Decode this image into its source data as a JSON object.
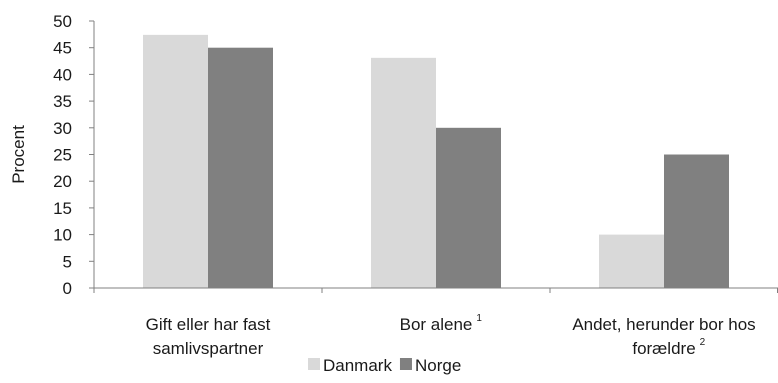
{
  "chart_data": {
    "type": "bar",
    "title": "",
    "xlabel": "",
    "ylabel": "Procent",
    "ylim": [
      0,
      50
    ],
    "yticks": [
      0,
      5,
      10,
      15,
      20,
      25,
      30,
      35,
      40,
      45,
      50
    ],
    "grid": false,
    "legend_position": "bottom",
    "categories": [
      {
        "lines": [
          "Gift eller har fast",
          "samlivspartner"
        ],
        "sup": ""
      },
      {
        "lines": [
          "Bor alene"
        ],
        "sup": "1"
      },
      {
        "lines": [
          "Andet, herunder bor hos",
          "forældre"
        ],
        "sup": "2"
      }
    ],
    "series": [
      {
        "name": "Danmark",
        "color": "#d9d9d9",
        "values": [
          47.4,
          43.1,
          10.0
        ]
      },
      {
        "name": "Norge",
        "color": "#808080",
        "values": [
          45.0,
          30.0,
          25.0
        ]
      }
    ]
  }
}
